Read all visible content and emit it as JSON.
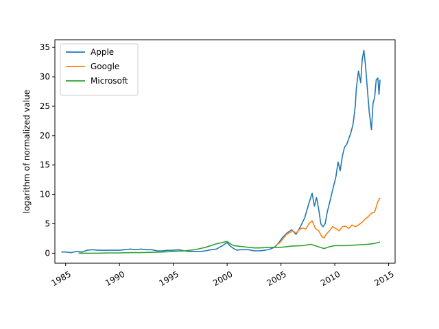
{
  "chart_data": {
    "type": "line",
    "title": "",
    "xlabel": "",
    "ylabel": "logarithm of normalized value",
    "xlim": [
      1984.0,
      2015.6
    ],
    "ylim": [
      -1.7,
      36.3
    ],
    "x_ticks": [
      1985,
      1990,
      1995,
      2000,
      2005,
      2010,
      2015
    ],
    "y_ticks": [
      0,
      5,
      10,
      15,
      20,
      25,
      30,
      35
    ],
    "grid": false,
    "legend": "upper-left",
    "series": [
      {
        "name": "Apple",
        "color": "#1f77b4",
        "x": [
          1984.6,
          1985.0,
          1985.5,
          1986.0,
          1986.5,
          1987.0,
          1987.5,
          1988.0,
          1988.5,
          1989.0,
          1989.5,
          1990.0,
          1990.5,
          1991.0,
          1991.5,
          1992.0,
          1992.5,
          1993.0,
          1993.5,
          1994.0,
          1994.5,
          1995.0,
          1995.5,
          1996.0,
          1996.5,
          1997.0,
          1997.5,
          1998.0,
          1998.5,
          1999.0,
          1999.5,
          2000.0,
          2000.3,
          2000.6,
          2000.9,
          2001.2,
          2001.6,
          2002.0,
          2002.5,
          2003.0,
          2003.5,
          2004.0,
          2004.4,
          2004.8,
          2005.2,
          2005.6,
          2006.0,
          2006.4,
          2006.8,
          2007.2,
          2007.6,
          2007.9,
          2008.1,
          2008.3,
          2008.5,
          2008.7,
          2008.9,
          2009.1,
          2009.3,
          2009.5,
          2009.7,
          2009.9,
          2010.1,
          2010.3,
          2010.5,
          2010.7,
          2010.9,
          2011.1,
          2011.3,
          2011.5,
          2011.7,
          2011.9,
          2012.0,
          2012.2,
          2012.4,
          2012.55,
          2012.7,
          2012.85,
          2013.0,
          2013.2,
          2013.4,
          2013.55,
          2013.7,
          2013.85,
          2014.0,
          2014.1,
          2014.2
        ],
        "y": [
          0.2,
          0.2,
          0.1,
          0.3,
          0.2,
          0.5,
          0.6,
          0.5,
          0.5,
          0.5,
          0.5,
          0.5,
          0.6,
          0.7,
          0.6,
          0.7,
          0.6,
          0.6,
          0.4,
          0.4,
          0.5,
          0.5,
          0.6,
          0.4,
          0.3,
          0.3,
          0.3,
          0.4,
          0.6,
          0.7,
          1.2,
          1.8,
          1.2,
          0.8,
          0.5,
          0.6,
          0.6,
          0.6,
          0.4,
          0.4,
          0.5,
          0.7,
          1.0,
          1.8,
          2.8,
          3.5,
          4.0,
          3.2,
          4.5,
          6.0,
          8.5,
          10.2,
          8.0,
          9.5,
          7.5,
          5.0,
          4.5,
          5.0,
          7.0,
          8.5,
          10.0,
          11.5,
          13.0,
          15.5,
          14.0,
          16.5,
          18.0,
          18.5,
          19.5,
          20.5,
          22.0,
          25.0,
          28.0,
          31.0,
          29.0,
          33.0,
          34.5,
          32.0,
          28.5,
          24.0,
          21.0,
          25.5,
          26.5,
          29.5,
          29.8,
          27.0,
          29.5
        ]
      },
      {
        "name": "Google",
        "color": "#ff7f0e",
        "x": [
          2004.6,
          2004.9,
          2005.2,
          2005.5,
          2005.8,
          2006.1,
          2006.4,
          2006.7,
          2007.0,
          2007.3,
          2007.6,
          2007.9,
          2008.2,
          2008.5,
          2008.8,
          2009.0,
          2009.2,
          2009.5,
          2009.8,
          2010.1,
          2010.4,
          2010.7,
          2011.0,
          2011.3,
          2011.6,
          2011.9,
          2012.2,
          2012.5,
          2012.8,
          2013.1,
          2013.4,
          2013.7,
          2014.0,
          2014.2
        ],
        "y": [
          1.4,
          1.8,
          2.5,
          3.2,
          3.5,
          3.8,
          3.4,
          4.0,
          4.3,
          4.1,
          5.0,
          5.5,
          4.2,
          3.8,
          2.8,
          2.6,
          3.2,
          3.8,
          4.5,
          4.2,
          3.8,
          4.5,
          4.6,
          4.2,
          4.8,
          4.5,
          4.8,
          5.2,
          5.8,
          6.2,
          6.8,
          7.0,
          8.8,
          9.4
        ]
      },
      {
        "name": "Microsoft",
        "color": "#2ca02c",
        "x": [
          1986.2,
          1987.0,
          1988.0,
          1989.0,
          1990.0,
          1991.0,
          1992.0,
          1993.0,
          1994.0,
          1995.0,
          1996.0,
          1997.0,
          1997.5,
          1998.0,
          1998.5,
          1999.0,
          1999.5,
          2000.0,
          2000.3,
          2000.6,
          2001.0,
          2001.5,
          2002.0,
          2002.5,
          2003.0,
          2004.0,
          2005.0,
          2006.0,
          2007.0,
          2007.8,
          2008.3,
          2009.0,
          2009.5,
          2010.0,
          2011.0,
          2012.0,
          2013.0,
          2013.5,
          2014.0,
          2014.2
        ],
        "y": [
          0.0,
          0.0,
          0.0,
          0.05,
          0.05,
          0.1,
          0.1,
          0.15,
          0.2,
          0.3,
          0.4,
          0.6,
          0.8,
          1.0,
          1.3,
          1.6,
          1.8,
          2.0,
          1.6,
          1.3,
          1.2,
          1.1,
          1.0,
          0.9,
          0.9,
          1.0,
          1.0,
          1.2,
          1.3,
          1.5,
          1.2,
          0.8,
          1.1,
          1.3,
          1.3,
          1.4,
          1.5,
          1.6,
          1.8,
          1.9
        ]
      }
    ]
  }
}
